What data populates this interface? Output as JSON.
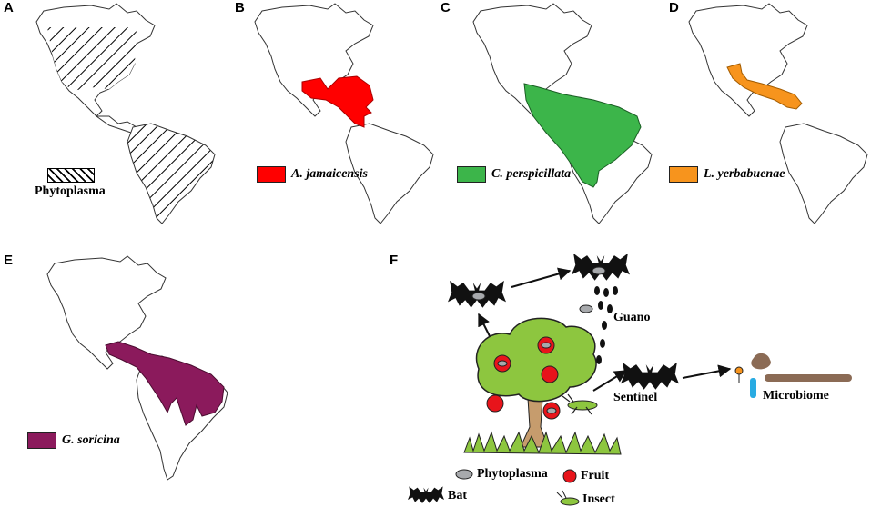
{
  "panels": {
    "A": {
      "label": "A",
      "legend": "Phytoplasma"
    },
    "B": {
      "label": "B",
      "legend": "A. jamaicensis",
      "color": "#ff0000"
    },
    "C": {
      "label": "C",
      "legend": "C. perspicillata",
      "color": "#3cb54a"
    },
    "D": {
      "label": "D",
      "legend": "L. yerbabuenae",
      "color": "#f7941d"
    },
    "E": {
      "label": "E",
      "legend": "G. soricina",
      "color": "#8b1a5c"
    },
    "F": {
      "label": "F"
    }
  },
  "diagram": {
    "guano": "Guano",
    "sentinel": "Sentinel",
    "microbiome": "Microbiome"
  },
  "key": {
    "phytoplasma": "Phytoplasma",
    "fruit": "Fruit",
    "bat": "Bat",
    "insect": "Insect"
  },
  "colors": {
    "tree_canopy": "#8dc63f",
    "trunk": "#c69c6d",
    "grass": "#8dc63f",
    "fruit": "#e8141b",
    "phytoplasma": "#a7a9ac",
    "microbe_brown": "#8b6b55",
    "microbe_blue": "#29abe2",
    "microbe_orange": "#f7941d"
  }
}
